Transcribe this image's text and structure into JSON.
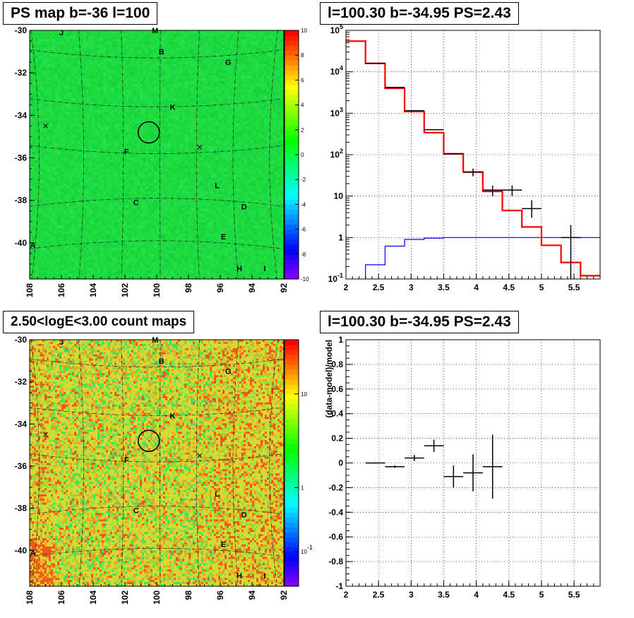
{
  "titles": {
    "ps_map": "PS map b=-36 l=100",
    "spectrum": "l=100.30 b=-34.95 PS=2.43",
    "count_map": "2.50<logE<3.00 count maps",
    "residual": "l=100.30 b=-34.95 PS=2.43"
  },
  "colors": {
    "data": "#000000",
    "model": "#ff0000",
    "background_model": "#0000ff",
    "ps_map_fill": "#1fe640",
    "count_map_fill": "#d8e030"
  },
  "chart_data": [
    {
      "type": "heatmap",
      "name": "ps_map",
      "title": "PS map b=-36 l=100",
      "x_axis": {
        "range": [
          108,
          92
        ],
        "ticks": [
          "108",
          "106",
          "104",
          "102",
          "100",
          "98",
          "96",
          "94",
          "92"
        ],
        "reversed": true
      },
      "y_axis": {
        "range": [
          -41.7,
          -30
        ],
        "ticks": [
          "-30",
          "-32",
          "-34",
          "-36",
          "-38",
          "-40"
        ]
      },
      "z_axis": {
        "range": [
          -10,
          10
        ],
        "ticks": [
          "10",
          "8",
          "6",
          "4",
          "2",
          "0",
          "-2",
          "-4",
          "-6",
          "-8",
          "-10"
        ]
      },
      "typical_value": 0,
      "source_labels": [
        {
          "t": "J",
          "l": 106.0,
          "b": -30.1
        },
        {
          "t": "M",
          "l": 100.1,
          "b": -30.0
        },
        {
          "t": "B",
          "l": 99.7,
          "b": -31.0
        },
        {
          "t": "G",
          "l": 95.5,
          "b": -31.5
        },
        {
          "t": "K",
          "l": 99.0,
          "b": -33.6
        },
        {
          "t": "F",
          "l": 101.9,
          "b": -35.7
        },
        {
          "t": "L",
          "l": 96.2,
          "b": -37.3
        },
        {
          "t": "C",
          "l": 101.3,
          "b": -38.1
        },
        {
          "t": "D",
          "l": 94.5,
          "b": -38.3
        },
        {
          "t": "E",
          "l": 95.8,
          "b": -39.7
        },
        {
          "t": "A",
          "l": 107.8,
          "b": -40.1
        },
        {
          "t": "H",
          "l": 94.8,
          "b": -41.2
        },
        {
          "t": "I",
          "l": 93.2,
          "b": -41.2
        }
      ],
      "crosses": [
        {
          "l": 107.0,
          "b": -34.5
        },
        {
          "l": 97.3,
          "b": -35.5
        }
      ],
      "circle": {
        "l": 100.5,
        "b": -34.8
      }
    },
    {
      "type": "line",
      "name": "spectrum",
      "title": "l=100.30 b=-34.95 PS=2.43",
      "x_axis": {
        "range": [
          2,
          5.9
        ],
        "ticks": [
          "2",
          "2.5",
          "3",
          "3.5",
          "4",
          "4.5",
          "5",
          "5.5"
        ]
      },
      "y_axis": {
        "range": [
          0.1,
          100000
        ],
        "scale": "log",
        "ticks": [
          "10^-1",
          "1",
          "10",
          "10^2",
          "10^3",
          "10^4",
          "10^5"
        ]
      },
      "model_step": {
        "edges": [
          2,
          2.3,
          2.6,
          2.9,
          3.2,
          3.5,
          3.8,
          4.1,
          4.4,
          4.7,
          5.0,
          5.3,
          5.6,
          5.9
        ],
        "values": [
          55000,
          16000,
          4000,
          1100,
          340,
          105,
          38,
          13,
          4.5,
          1.8,
          0.65,
          0.25,
          0.12
        ]
      },
      "background_step": {
        "edges": [
          2.3,
          2.6,
          2.9,
          3.2,
          3.5,
          3.8,
          4.1,
          4.4,
          4.7,
          5.0,
          5.3,
          5.6,
          5.9
        ],
        "values": [
          0.22,
          0.62,
          0.9,
          0.97,
          1.0,
          1.0,
          1.0,
          1.0,
          1.0,
          1.0,
          1.0,
          1.0
        ]
      },
      "data_points": [
        {
          "x": 2.45,
          "y": 16000,
          "xerr": 0.15,
          "ylo": 16000,
          "yhi": 16000
        },
        {
          "x": 2.75,
          "y": 4200,
          "xerr": 0.15,
          "ylo": 4200,
          "yhi": 4200
        },
        {
          "x": 3.05,
          "y": 1150,
          "xerr": 0.15,
          "ylo": 1150,
          "yhi": 1150
        },
        {
          "x": 3.35,
          "y": 400,
          "xerr": 0.15,
          "ylo": 400,
          "yhi": 400
        },
        {
          "x": 3.65,
          "y": 105,
          "xerr": 0.15,
          "ylo": 105,
          "yhi": 105
        },
        {
          "x": 3.95,
          "y": 38,
          "xerr": 0.15,
          "ylo": 30,
          "yhi": 46
        },
        {
          "x": 4.25,
          "y": 14,
          "xerr": 0.15,
          "ylo": 10,
          "yhi": 18
        },
        {
          "x": 4.55,
          "y": 14,
          "xerr": 0.15,
          "ylo": 10,
          "yhi": 18
        },
        {
          "x": 4.85,
          "y": 5,
          "xerr": 0.15,
          "ylo": 3,
          "yhi": 8
        },
        {
          "x": 5.45,
          "y": 1,
          "xerr": 0.15,
          "ylo": 0.1,
          "yhi": 2
        }
      ]
    },
    {
      "type": "heatmap",
      "name": "count_map",
      "title": "2.50<logE<3.00 count maps",
      "x_axis": {
        "range": [
          108,
          92
        ],
        "ticks": [
          "108",
          "106",
          "104",
          "102",
          "100",
          "98",
          "96",
          "94",
          "92"
        ],
        "reversed": true
      },
      "y_axis": {
        "range": [
          -41.7,
          -30
        ],
        "ticks": [
          "-30",
          "-32",
          "-34",
          "-36",
          "-38",
          "-40"
        ]
      },
      "z_axis": {
        "scale": "log",
        "ticks": [
          "10",
          "1",
          "10^-1"
        ]
      },
      "source_labels": [
        {
          "t": "J",
          "l": 106.0,
          "b": -30.1
        },
        {
          "t": "M",
          "l": 100.1,
          "b": -30.0
        },
        {
          "t": "B",
          "l": 99.7,
          "b": -31.0
        },
        {
          "t": "G",
          "l": 95.5,
          "b": -31.5
        },
        {
          "t": "K",
          "l": 99.0,
          "b": -33.6
        },
        {
          "t": "F",
          "l": 101.9,
          "b": -35.7
        },
        {
          "t": "L",
          "l": 96.2,
          "b": -37.3
        },
        {
          "t": "C",
          "l": 101.3,
          "b": -38.1
        },
        {
          "t": "D",
          "l": 94.5,
          "b": -38.3
        },
        {
          "t": "E",
          "l": 95.8,
          "b": -39.7
        },
        {
          "t": "A",
          "l": 107.8,
          "b": -40.1
        },
        {
          "t": "H",
          "l": 94.8,
          "b": -41.2
        },
        {
          "t": "I",
          "l": 93.2,
          "b": -41.2
        }
      ],
      "crosses": [
        {
          "l": 107.0,
          "b": -34.5
        },
        {
          "l": 97.3,
          "b": -35.5
        }
      ],
      "circle": {
        "l": 100.5,
        "b": -34.8
      }
    },
    {
      "type": "scatter",
      "name": "residual",
      "title": "l=100.30 b=-34.95 PS=2.43",
      "ylabel": "(data-model)/model",
      "x_axis": {
        "range": [
          2,
          5.9
        ],
        "ticks": [
          "2",
          "2.5",
          "3",
          "3.5",
          "4",
          "4.5",
          "5",
          "5.5"
        ]
      },
      "y_axis": {
        "range": [
          -1,
          1
        ],
        "ticks": [
          "1",
          "0.8",
          "0.6",
          "0.4",
          "0.2",
          "0",
          "-0.2",
          "-0.4",
          "-0.6",
          "-0.8",
          "-1"
        ]
      },
      "data_points": [
        {
          "x": 2.45,
          "y": 0.0,
          "xerr": 0.15,
          "yerr": 0.005
        },
        {
          "x": 2.75,
          "y": -0.03,
          "xerr": 0.15,
          "yerr": 0.01
        },
        {
          "x": 3.05,
          "y": 0.04,
          "xerr": 0.15,
          "yerr": 0.025
        },
        {
          "x": 3.35,
          "y": 0.14,
          "xerr": 0.15,
          "yerr": 0.05
        },
        {
          "x": 3.65,
          "y": -0.11,
          "xerr": 0.15,
          "yerr": 0.09
        },
        {
          "x": 3.95,
          "y": -0.08,
          "xerr": 0.15,
          "yerr": 0.15
        },
        {
          "x": 4.25,
          "y": -0.03,
          "xerr": 0.15,
          "yerr": 0.26
        }
      ]
    }
  ]
}
